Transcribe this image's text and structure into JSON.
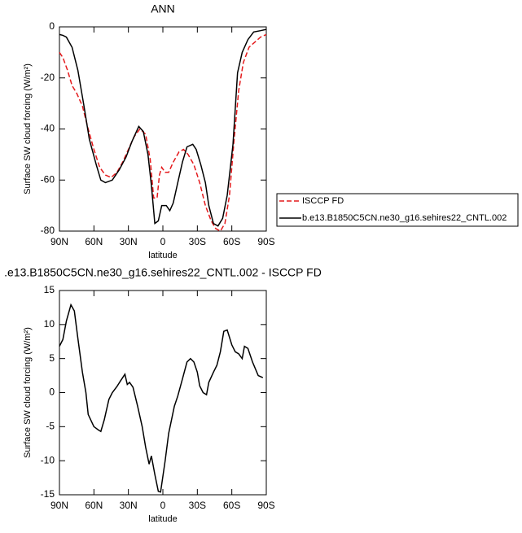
{
  "chart_data": [
    {
      "type": "line",
      "title": "ANN",
      "x_label": "latitude",
      "y_label": "Surface SW cloud forcing (W/m²)",
      "xlim": [
        90,
        -90
      ],
      "ylim": [
        -80,
        0
      ],
      "xticks": [
        {
          "value": 90,
          "label": "90N"
        },
        {
          "value": 60,
          "label": "60N"
        },
        {
          "value": 30,
          "label": "30N"
        },
        0,
        {
          "value": -30,
          "label": "30S"
        },
        {
          "value": -60,
          "label": "60S"
        },
        {
          "value": -90,
          "label": "90S"
        }
      ],
      "yticks": [
        0,
        -20,
        -40,
        -60,
        -80
      ],
      "legend": "outside-right",
      "series": [
        {
          "name": "ISCCP FD",
          "color": "#e41a1c",
          "style": "dashed",
          "x": [
            90,
            87,
            83,
            79,
            75,
            70,
            65,
            60,
            55,
            50,
            45,
            40,
            35,
            30,
            25,
            20,
            15,
            11,
            8,
            5,
            3,
            1,
            -2,
            -5,
            -9,
            -14,
            -18,
            -22,
            -27,
            -32,
            -37,
            -42,
            -46,
            -50,
            -54,
            -58,
            -62,
            -66,
            -70,
            -75,
            -80,
            -85,
            -90
          ],
          "values": [
            -10,
            -12,
            -17,
            -23,
            -26,
            -31,
            -40,
            -48,
            -55,
            -58,
            -59,
            -57,
            -53,
            -48,
            -43,
            -40,
            -42,
            -52,
            -67,
            -67,
            -58,
            -55,
            -57,
            -57,
            -53,
            -49,
            -48,
            -50,
            -54,
            -61,
            -70,
            -76,
            -79,
            -80,
            -77,
            -66,
            -44,
            -25,
            -14,
            -8,
            -6,
            -4,
            -3
          ]
        },
        {
          "name": "b.e13.B1850C5CN.ne30_g16.sehires22_CNTL.002",
          "color": "#000000",
          "style": "solid",
          "x": [
            90,
            87,
            84,
            79,
            74,
            69,
            64,
            58,
            54,
            50,
            44,
            38,
            32,
            27,
            21,
            17,
            13,
            10,
            7,
            4,
            1,
            -3,
            -6,
            -9,
            -13,
            -17,
            -21,
            -26,
            -29,
            -33,
            -37,
            -40,
            -44,
            -48,
            -52,
            -56,
            -61,
            -65,
            -69,
            -74,
            -79,
            -85,
            -90
          ],
          "values": [
            -3,
            -3.3,
            -4,
            -8,
            -17,
            -30,
            -44,
            -54,
            -60,
            -61,
            -60,
            -56,
            -51,
            -45,
            -39,
            -41,
            -50,
            -62,
            -77,
            -76,
            -70,
            -70,
            -72,
            -69,
            -61,
            -53,
            -47,
            -46,
            -48,
            -54,
            -61,
            -70,
            -77,
            -78,
            -75,
            -66,
            -46,
            -18,
            -10,
            -5,
            -2,
            -1.5,
            -1
          ]
        }
      ]
    },
    {
      "type": "line",
      "title": ".e13.B1850C5CN.ne30_g16.sehires22_CNTL.002 - ISCCP FD",
      "x_label": "latitude",
      "y_label": "Surface SW cloud forcing (W/m²)",
      "xlim": [
        90,
        -90
      ],
      "ylim": [
        -15,
        15
      ],
      "xticks": [
        {
          "value": 90,
          "label": "90N"
        },
        {
          "value": 60,
          "label": "60N"
        },
        {
          "value": 30,
          "label": "30N"
        },
        0,
        {
          "value": -30,
          "label": "30S"
        },
        {
          "value": -60,
          "label": "60S"
        },
        {
          "value": -90,
          "label": "90S"
        }
      ],
      "yticks": [
        -15,
        -10,
        -5,
        0,
        5,
        10,
        15
      ],
      "series": [
        {
          "color": "#000000",
          "style": "solid",
          "x": [
            90,
            87,
            84,
            80,
            77,
            74,
            70,
            67,
            65,
            60,
            56,
            54,
            51,
            47,
            44,
            40,
            37,
            33,
            31,
            29,
            26,
            22,
            18,
            15,
            12,
            10,
            7,
            4,
            2,
            -2,
            -5,
            -10,
            -13,
            -17,
            -21,
            -24,
            -27,
            -30,
            -32,
            -35,
            -38,
            -40,
            -44,
            -47,
            -50,
            -53,
            -56,
            -60,
            -63,
            -66,
            -69,
            -71,
            -74,
            -78,
            -83,
            -87
          ],
          "values": [
            6.8,
            7.8,
            10.5,
            12.9,
            12,
            8,
            3,
            0,
            -3.2,
            -5,
            -5.5,
            -5.7,
            -4,
            -1,
            0,
            0.9,
            1.7,
            2.7,
            1.2,
            1.5,
            0.8,
            -2,
            -5,
            -8,
            -10.5,
            -9.3,
            -12,
            -14.5,
            -14.6,
            -10,
            -6,
            -2,
            -0.5,
            2,
            4.5,
            5,
            4.5,
            3,
            1,
            0,
            -0.3,
            1.5,
            3,
            4,
            6,
            9,
            9.2,
            7,
            6,
            5.7,
            5,
            6.8,
            6.5,
            4.5,
            2.5,
            2.2
          ]
        }
      ]
    }
  ]
}
